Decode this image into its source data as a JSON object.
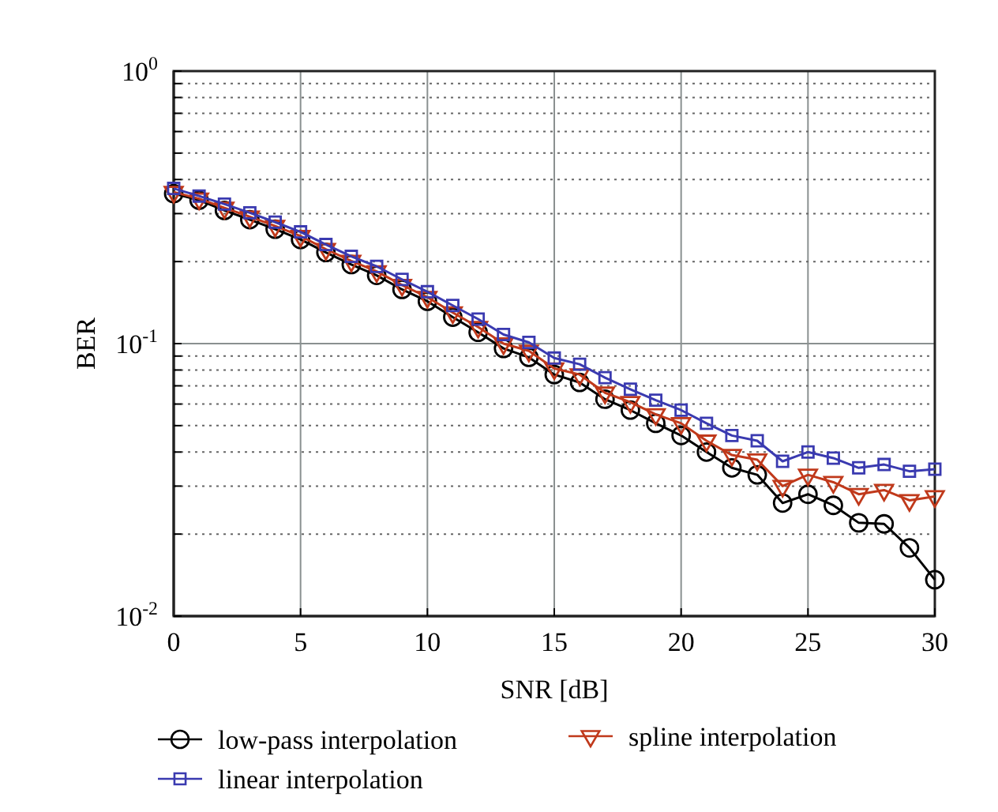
{
  "chart_data": {
    "type": "line",
    "xlabel": "SNR [dB]",
    "ylabel": "BER",
    "log": "y",
    "grid": true,
    "legend": "bottom",
    "line_style": "solid",
    "x": [
      0,
      1,
      2,
      3,
      4,
      5,
      6,
      7,
      8,
      9,
      10,
      11,
      12,
      13,
      14,
      15,
      16,
      17,
      18,
      19,
      20,
      21,
      22,
      23,
      24,
      25,
      26,
      27,
      28,
      29,
      30
    ],
    "xlim": [
      0,
      30
    ],
    "xticks": [
      0,
      5,
      10,
      15,
      20,
      25,
      30
    ],
    "ylim": [
      0.01,
      1
    ],
    "yticks": [
      {
        "value": 0.01,
        "label": "10$^{-2}$"
      },
      {
        "value": 0.02,
        "label": null
      },
      {
        "value": 0.03,
        "label": null
      },
      {
        "value": 0.04,
        "label": null
      },
      {
        "value": 0.05,
        "label": null
      },
      {
        "value": 0.06,
        "label": null
      },
      {
        "value": 0.07,
        "label": null
      },
      {
        "value": 0.08,
        "label": null
      },
      {
        "value": 0.09,
        "label": null
      },
      {
        "value": 0.1,
        "label": "10$^{-1}$"
      },
      {
        "value": 0.2,
        "label": null
      },
      {
        "value": 0.3,
        "label": null
      },
      {
        "value": 0.4,
        "label": null
      },
      {
        "value": 0.5,
        "label": null
      },
      {
        "value": 0.6,
        "label": null
      },
      {
        "value": 0.7,
        "label": null
      },
      {
        "value": 0.8,
        "label": null
      },
      {
        "value": 0.9,
        "label": null
      },
      {
        "value": 1,
        "label": "10$^{0}$"
      }
    ],
    "series": [
      {
        "name": "low-pass interpolation",
        "color": "#000000",
        "marker": "circle",
        "values": [
          0.355,
          0.336,
          0.308,
          0.285,
          0.263,
          0.241,
          0.216,
          0.195,
          0.178,
          0.158,
          0.143,
          0.125,
          0.11,
          0.096,
          0.089,
          0.077,
          0.072,
          0.0625,
          0.057,
          0.051,
          0.046,
          0.04,
          0.035,
          0.033,
          0.026,
          0.028,
          0.0255,
          0.022,
          0.0218,
          0.0178,
          0.0136
        ]
      },
      {
        "name": "spline interpolation",
        "color": "#c0391b",
        "marker": "triangle",
        "values": [
          0.36,
          0.34,
          0.315,
          0.292,
          0.27,
          0.248,
          0.222,
          0.201,
          0.184,
          0.164,
          0.148,
          0.13,
          0.115,
          0.1,
          0.094,
          0.081,
          0.077,
          0.066,
          0.061,
          0.055,
          0.051,
          0.044,
          0.039,
          0.0375,
          0.03,
          0.033,
          0.031,
          0.028,
          0.029,
          0.0266,
          0.0275
        ]
      },
      {
        "name": "linear interpolation",
        "color": "#3a3ab0",
        "marker": "square",
        "values": [
          0.371,
          0.348,
          0.325,
          0.302,
          0.279,
          0.257,
          0.231,
          0.209,
          0.192,
          0.172,
          0.155,
          0.138,
          0.123,
          0.108,
          0.101,
          0.0885,
          0.084,
          0.075,
          0.068,
          0.062,
          0.057,
          0.051,
          0.046,
          0.044,
          0.037,
          0.04,
          0.038,
          0.035,
          0.036,
          0.034,
          0.0346
        ]
      }
    ]
  }
}
